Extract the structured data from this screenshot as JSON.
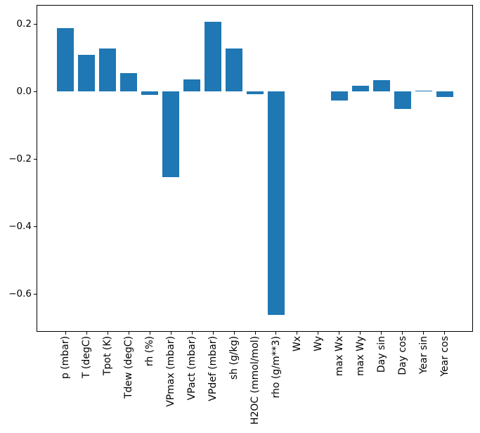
{
  "chart_data": {
    "type": "bar",
    "title": "",
    "xlabel": "",
    "ylabel": "",
    "categories": [
      "p (mbar)",
      "T (degC)",
      "Tpot (K)",
      "Tdew (degC)",
      "rh (%)",
      "VPmax (mbar)",
      "VPact (mbar)",
      "VPdef (mbar)",
      "sh (g/kg)",
      "H2OC (mmol/mol)",
      "rho (g/m**3)",
      "Wx",
      "Wy",
      "max Wx",
      "max Wy",
      "Day sin",
      "Day cos",
      "Year sin",
      "Year cos"
    ],
    "values": [
      0.187,
      0.109,
      0.128,
      0.055,
      -0.011,
      -0.255,
      0.036,
      0.206,
      0.128,
      -0.008,
      -0.663,
      0.0,
      0.0,
      -0.028,
      0.016,
      0.033,
      -0.052,
      0.002,
      -0.017
    ],
    "bar_color": "#1f77b4",
    "ylim": [
      -0.7125,
      0.2542
    ],
    "xlim": [
      -1.34,
      19.34
    ],
    "bar_width_fraction": 0.8,
    "grid": false,
    "yticks": {
      "values": [
        0.2,
        0.0,
        -0.2,
        -0.4,
        -0.6
      ],
      "labels": [
        "0.2",
        "0.0",
        "−0.2",
        "−0.4",
        "−0.6"
      ]
    },
    "spine_color": "#000000",
    "tick_label_color": "#000000",
    "background_color": "#ffffff"
  }
}
